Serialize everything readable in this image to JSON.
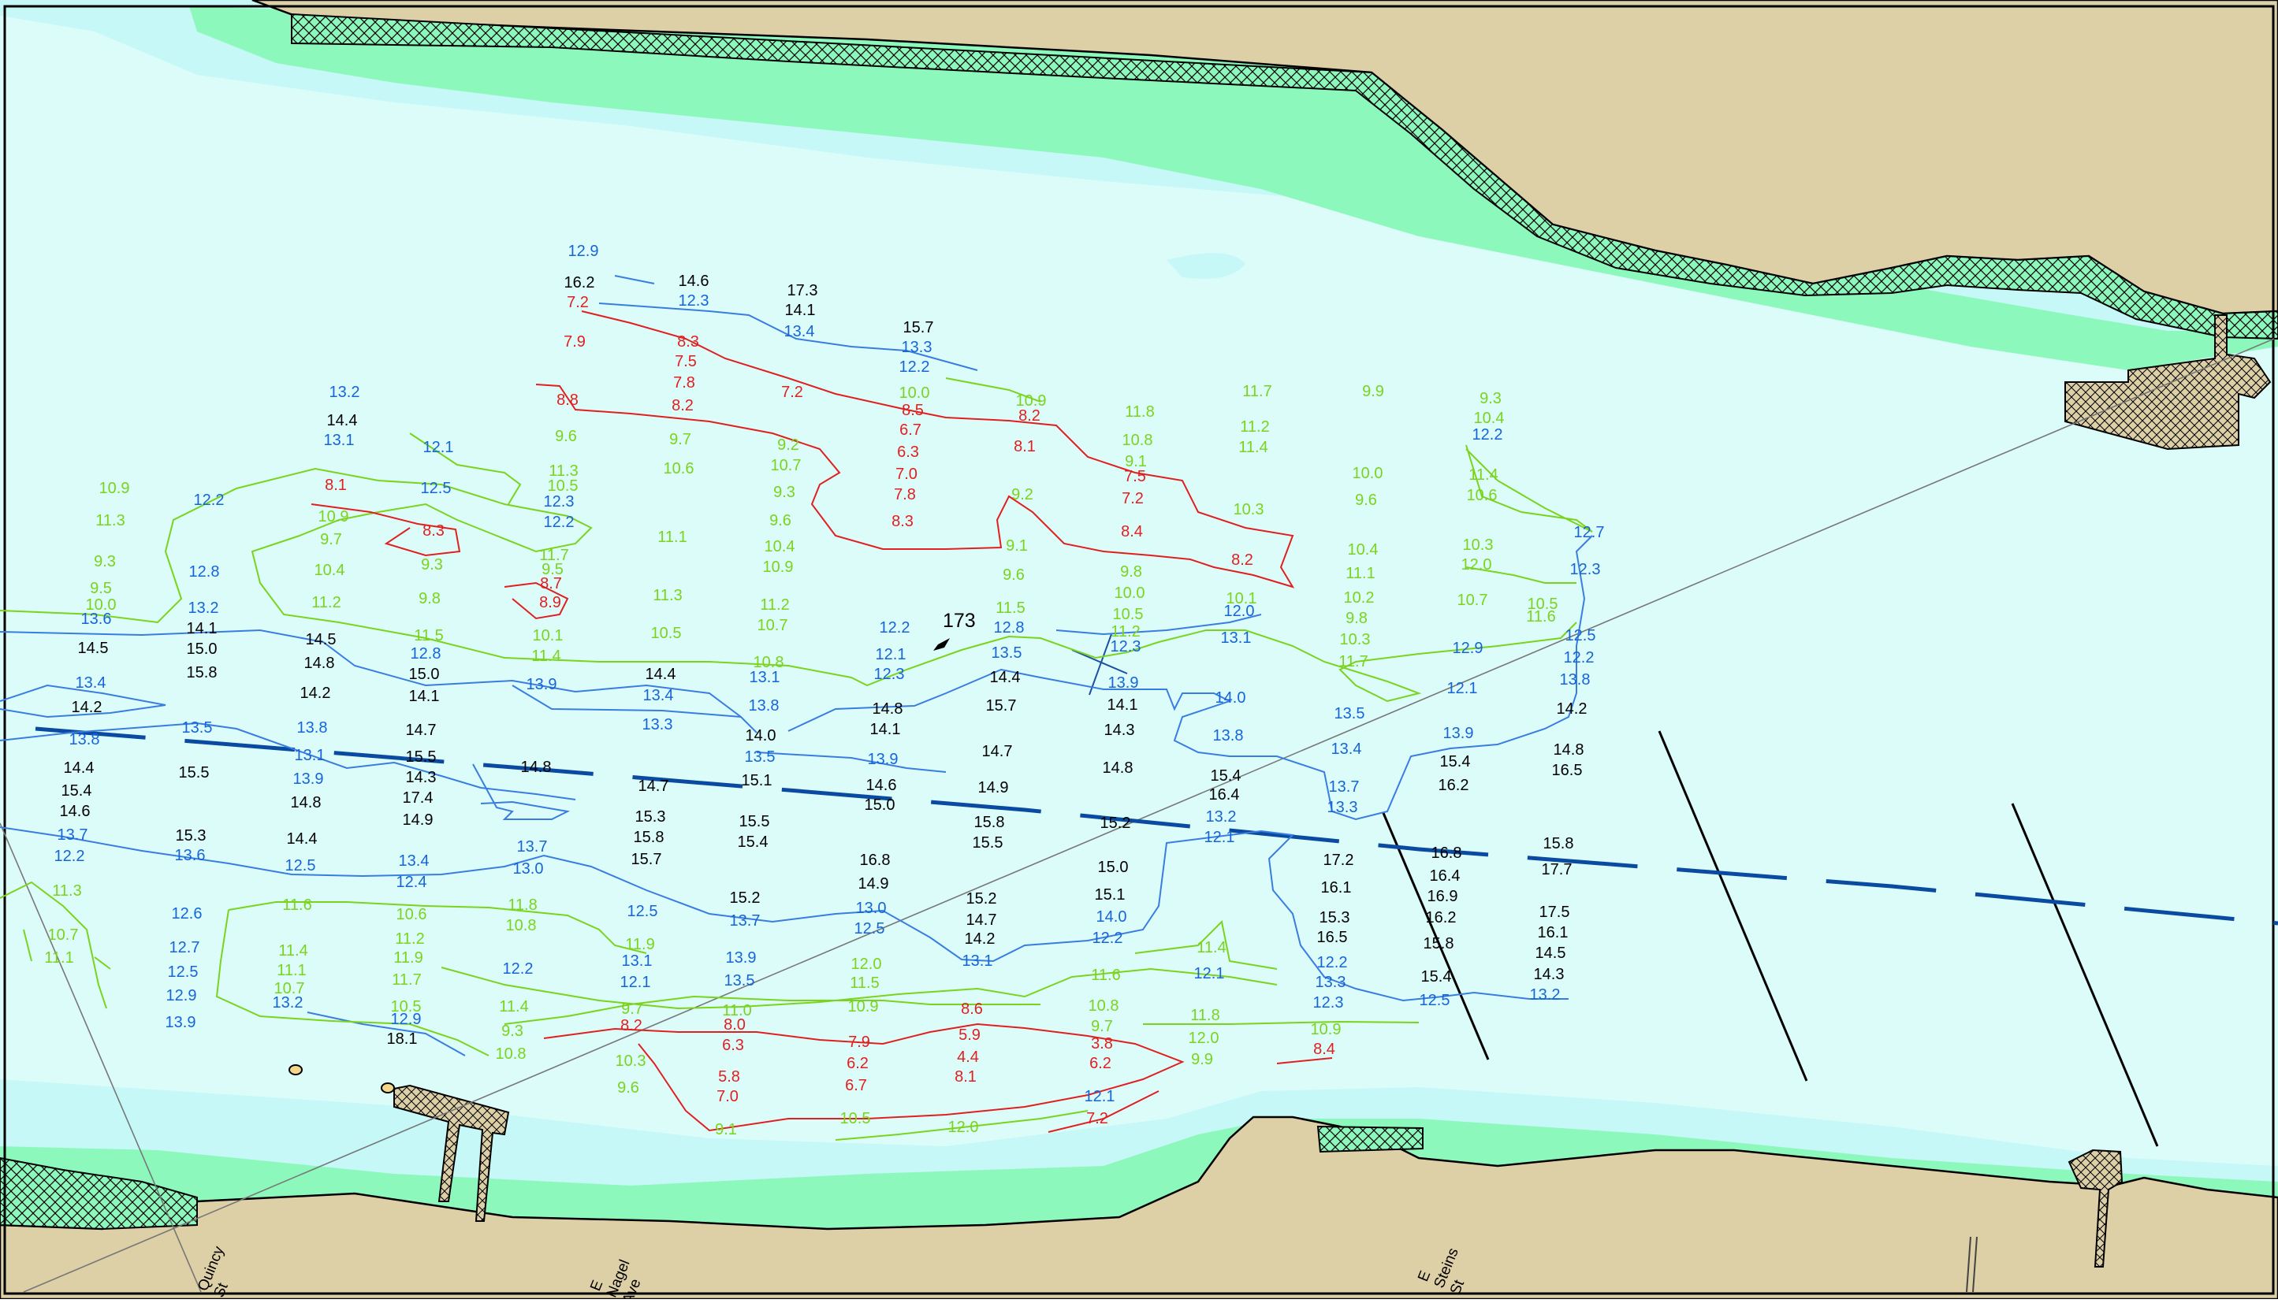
{
  "colors": {
    "water": "#dcfcfa",
    "shallow": "#c6f8f8",
    "marsh": "#8cf8bc",
    "land": "#ddcfa6",
    "depth_black": "#000000",
    "depth_blue": "#1565d8",
    "depth_green": "#7ad41c",
    "depth_red": "#e02020",
    "channel": "#0a4aa0"
  },
  "landmark": "173",
  "streets": [
    {
      "lines": [
        "Quincy",
        "St"
      ]
    },
    {
      "lines": [
        "E",
        "Nagel",
        "Ave"
      ]
    },
    {
      "lines": [
        "E",
        "Steins",
        "St"
      ]
    }
  ],
  "soundings": {
    "black": [
      [
        "16.2",
        735,
        365
      ],
      [
        "14.6",
        880,
        363
      ],
      [
        "17.3",
        1018,
        375
      ],
      [
        "14.1",
        1015,
        400
      ],
      [
        "15.7",
        1165,
        422
      ],
      [
        "14.4",
        434,
        540
      ],
      [
        "14.1",
        256,
        804
      ],
      [
        "15.0",
        256,
        830
      ],
      [
        "15.8",
        256,
        860
      ],
      [
        "14.5",
        118,
        829
      ],
      [
        "14.5",
        407,
        818
      ],
      [
        "14.8",
        405,
        848
      ],
      [
        "14.2",
        400,
        886
      ],
      [
        "15.0",
        538,
        862
      ],
      [
        "14.1",
        538,
        890
      ],
      [
        "14.2",
        110,
        904
      ],
      [
        "14.7",
        534,
        933
      ],
      [
        "15.5",
        534,
        967
      ],
      [
        "14.3",
        534,
        993
      ],
      [
        "17.4",
        530,
        1019
      ],
      [
        "14.9",
        530,
        1047
      ],
      [
        "15.5",
        246,
        987
      ],
      [
        "14.8",
        680,
        980
      ],
      [
        "14.4",
        100,
        981
      ],
      [
        "15.4",
        97,
        1010
      ],
      [
        "14.6",
        95,
        1036
      ],
      [
        "14.8",
        388,
        1025
      ],
      [
        "14.4",
        838,
        862
      ],
      [
        "14.7",
        829,
        1004
      ],
      [
        "14.0",
        965,
        940
      ],
      [
        "15.1",
        960,
        997
      ],
      [
        "15.3",
        825,
        1043
      ],
      [
        "15.8",
        823,
        1069
      ],
      [
        "15.7",
        820,
        1097
      ],
      [
        "15.5",
        957,
        1049
      ],
      [
        "15.4",
        955,
        1075
      ],
      [
        "15.3",
        242,
        1067
      ],
      [
        "14.4",
        383,
        1071
      ],
      [
        "14.8",
        1126,
        906
      ],
      [
        "14.1",
        1123,
        932
      ],
      [
        "14.6",
        1118,
        1003
      ],
      [
        "15.0",
        1116,
        1028
      ],
      [
        "16.8",
        1110,
        1098
      ],
      [
        "14.9",
        1108,
        1128
      ],
      [
        "14.4",
        1275,
        866
      ],
      [
        "15.7",
        1270,
        902
      ],
      [
        "14.7",
        1265,
        960
      ],
      [
        "14.9",
        1260,
        1006
      ],
      [
        "15.8",
        1255,
        1050
      ],
      [
        "15.5",
        1253,
        1076
      ],
      [
        "14.1",
        1424,
        901
      ],
      [
        "14.3",
        1420,
        933
      ],
      [
        "14.8",
        1418,
        981
      ],
      [
        "15.2",
        1415,
        1051
      ],
      [
        "15.0",
        1412,
        1107
      ],
      [
        "15.1",
        1408,
        1142
      ],
      [
        "15.2",
        945,
        1146
      ],
      [
        "15.2",
        1245,
        1147
      ],
      [
        "14.7",
        1245,
        1174
      ],
      [
        "14.2",
        1243,
        1198
      ],
      [
        "15.4",
        1555,
        991
      ],
      [
        "16.4",
        1553,
        1015
      ],
      [
        "14.2",
        1994,
        906
      ],
      [
        "15.4",
        1846,
        973
      ],
      [
        "16.2",
        1844,
        1003
      ],
      [
        "14.8",
        1990,
        958
      ],
      [
        "16.5",
        1988,
        984
      ],
      [
        "17.2",
        1698,
        1098
      ],
      [
        "16.1",
        1695,
        1133
      ],
      [
        "15.3",
        1693,
        1171
      ],
      [
        "16.5",
        1690,
        1196
      ],
      [
        "16.8",
        1835,
        1089
      ],
      [
        "16.4",
        1833,
        1118
      ],
      [
        "16.9",
        1830,
        1144
      ],
      [
        "16.2",
        1828,
        1171
      ],
      [
        "15.8",
        1825,
        1204
      ],
      [
        "15.4",
        1822,
        1246
      ],
      [
        "15.8",
        1977,
        1077
      ],
      [
        "17.7",
        1975,
        1110
      ],
      [
        "17.5",
        1972,
        1164
      ],
      [
        "16.1",
        1970,
        1190
      ],
      [
        "14.5",
        1967,
        1216
      ],
      [
        "14.3",
        1965,
        1243
      ],
      [
        "18.1",
        510,
        1325
      ]
    ],
    "blue": [
      [
        "12.9",
        740,
        325
      ],
      [
        "12.3",
        880,
        388
      ],
      [
        "13.4",
        1014,
        427
      ],
      [
        "13.3",
        1163,
        447
      ],
      [
        "12.2",
        1160,
        472
      ],
      [
        "13.2",
        437,
        504
      ],
      [
        "13.1",
        430,
        565
      ],
      [
        "12.1",
        556,
        574
      ],
      [
        "12.2",
        265,
        641
      ],
      [
        "12.5",
        553,
        626
      ],
      [
        "12.3",
        709,
        643
      ],
      [
        "12.2",
        709,
        669
      ],
      [
        "12.8",
        259,
        732
      ],
      [
        "13.2",
        258,
        778
      ],
      [
        "13.6",
        122,
        792
      ],
      [
        "12.8",
        540,
        836
      ],
      [
        "13.9",
        687,
        875
      ],
      [
        "13.1",
        970,
        866
      ],
      [
        "13.4",
        835,
        889
      ],
      [
        "13.3",
        834,
        926
      ],
      [
        "13.8",
        969,
        902
      ],
      [
        "13.5",
        964,
        967
      ],
      [
        "13.9",
        1120,
        970
      ],
      [
        "12.2",
        1135,
        803
      ],
      [
        "12.1",
        1130,
        837
      ],
      [
        "12.3",
        1128,
        862
      ],
      [
        "12.8",
        1280,
        803
      ],
      [
        "13.5",
        1277,
        835
      ],
      [
        "12.3",
        1428,
        827
      ],
      [
        "13.9",
        1425,
        873
      ],
      [
        "12.0",
        1572,
        782
      ],
      [
        "13.1",
        1568,
        816
      ],
      [
        "14.0",
        1561,
        892
      ],
      [
        "13.8",
        1558,
        940
      ],
      [
        "13.5",
        1712,
        912
      ],
      [
        "13.4",
        1708,
        957
      ],
      [
        "13.7",
        1705,
        1005
      ],
      [
        "13.3",
        1703,
        1031
      ],
      [
        "13.2",
        1549,
        1043
      ],
      [
        "12.1",
        1547,
        1069
      ],
      [
        "13.9",
        1850,
        937
      ],
      [
        "12.1",
        1855,
        880
      ],
      [
        "12.9",
        1862,
        829
      ],
      [
        "12.2",
        1887,
        558
      ],
      [
        "12.7",
        2016,
        682
      ],
      [
        "12.3",
        2011,
        729
      ],
      [
        "12.5",
        2005,
        813
      ],
      [
        "12.2",
        2003,
        841
      ],
      [
        "13.8",
        1998,
        869
      ],
      [
        "13.4",
        115,
        873
      ],
      [
        "13.8",
        107,
        945
      ],
      [
        "13.5",
        250,
        930
      ],
      [
        "13.8",
        396,
        930
      ],
      [
        "13.1",
        393,
        965
      ],
      [
        "13.9",
        391,
        995
      ],
      [
        "13.7",
        92,
        1066
      ],
      [
        "12.2",
        88,
        1093
      ],
      [
        "13.6",
        241,
        1092
      ],
      [
        "12.5",
        381,
        1105
      ],
      [
        "13.4",
        525,
        1099
      ],
      [
        "12.4",
        522,
        1126
      ],
      [
        "13.7",
        675,
        1081
      ],
      [
        "13.0",
        670,
        1109
      ],
      [
        "12.5",
        815,
        1163
      ],
      [
        "13.7",
        945,
        1175
      ],
      [
        "13.0",
        1105,
        1159
      ],
      [
        "12.5",
        1103,
        1185
      ],
      [
        "13.1",
        1240,
        1226
      ],
      [
        "14.0",
        1410,
        1170
      ],
      [
        "12.2",
        1405,
        1197
      ],
      [
        "12.1",
        1534,
        1242
      ],
      [
        "12.2",
        1690,
        1228
      ],
      [
        "13.3",
        1688,
        1253
      ],
      [
        "12.3",
        1685,
        1279
      ],
      [
        "12.5",
        1820,
        1276
      ],
      [
        "13.2",
        1960,
        1269
      ],
      [
        "12.6",
        237,
        1166
      ],
      [
        "12.7",
        234,
        1209
      ],
      [
        "12.5",
        232,
        1240
      ],
      [
        "12.9",
        230,
        1270
      ],
      [
        "13.9",
        229,
        1304
      ],
      [
        "13.2",
        365,
        1279
      ],
      [
        "12.9",
        515,
        1300
      ],
      [
        "12.2",
        657,
        1236
      ],
      [
        "13.1",
        808,
        1226
      ],
      [
        "12.1",
        806,
        1253
      ],
      [
        "13.9",
        940,
        1222
      ],
      [
        "13.5",
        938,
        1251
      ],
      [
        "12.1",
        1395,
        1398
      ]
    ],
    "green": [
      [
        "10.9",
        145,
        626
      ],
      [
        "11.3",
        140,
        667
      ],
      [
        "9.3",
        133,
        719
      ],
      [
        "9.5",
        128,
        753
      ],
      [
        "10.0",
        128,
        774
      ],
      [
        "11.3",
        715,
        604
      ],
      [
        "10.5",
        714,
        623
      ],
      [
        "11.7",
        703,
        711
      ],
      [
        "9.5",
        701,
        729
      ],
      [
        "9.6",
        718,
        560
      ],
      [
        "10.9",
        423,
        662
      ],
      [
        "9.7",
        420,
        691
      ],
      [
        "10.4",
        418,
        730
      ],
      [
        "11.2",
        414,
        771
      ],
      [
        "9.8",
        545,
        766
      ],
      [
        "9.3",
        548,
        723
      ],
      [
        "11.5",
        544,
        813
      ],
      [
        "10.1",
        695,
        813
      ],
      [
        "11.4",
        693,
        839
      ],
      [
        "11.1",
        853,
        688
      ],
      [
        "11.3",
        847,
        762
      ],
      [
        "10.5",
        845,
        810
      ],
      [
        "9.7",
        863,
        564
      ],
      [
        "10.6",
        861,
        601
      ],
      [
        "9.2",
        1000,
        571
      ],
      [
        "10.7",
        997,
        597
      ],
      [
        "9.3",
        995,
        631
      ],
      [
        "9.6",
        990,
        667
      ],
      [
        "10.4",
        989,
        700
      ],
      [
        "10.9",
        987,
        726
      ],
      [
        "11.2",
        983,
        774
      ],
      [
        "10.7",
        980,
        800
      ],
      [
        "10.8",
        975,
        847
      ],
      [
        "10.0",
        1160,
        505
      ],
      [
        "10.9",
        1308,
        515
      ],
      [
        "9.2",
        1297,
        634
      ],
      [
        "9.1",
        1290,
        699
      ],
      [
        "9.6",
        1286,
        736
      ],
      [
        "11.5",
        1282,
        778
      ],
      [
        "11.8",
        1446,
        529
      ],
      [
        "10.8",
        1443,
        565
      ],
      [
        "9.1",
        1441,
        592
      ],
      [
        "9.8",
        1435,
        732
      ],
      [
        "10.0",
        1433,
        759
      ],
      [
        "10.5",
        1431,
        786
      ],
      [
        "11.2",
        1428,
        808
      ],
      [
        "11.7",
        1595,
        503
      ],
      [
        "11.2",
        1592,
        548
      ],
      [
        "11.4",
        1590,
        574
      ],
      [
        "10.3",
        1584,
        653
      ],
      [
        "10.1",
        1575,
        766
      ],
      [
        "9.9",
        1742,
        503
      ],
      [
        "10.0",
        1735,
        607
      ],
      [
        "9.6",
        1733,
        641
      ],
      [
        "10.4",
        1729,
        704
      ],
      [
        "11.1",
        1726,
        734
      ],
      [
        "10.2",
        1724,
        765
      ],
      [
        "9.8",
        1721,
        791
      ],
      [
        "10.3",
        1719,
        818
      ],
      [
        "11.7",
        1717,
        846
      ],
      [
        "9.3",
        1891,
        512
      ],
      [
        "10.4",
        1889,
        537
      ],
      [
        "11.4",
        1882,
        609
      ],
      [
        "10.6",
        1880,
        635
      ],
      [
        "10.3",
        1875,
        698
      ],
      [
        "12.0",
        1873,
        723
      ],
      [
        "10.7",
        1868,
        768
      ],
      [
        "10.5",
        1957,
        773
      ],
      [
        "11.6",
        1955,
        789
      ],
      [
        "11.3",
        85,
        1137
      ],
      [
        "10.7",
        80,
        1193
      ],
      [
        "11.1",
        75,
        1222
      ],
      [
        "11.6",
        377,
        1155
      ],
      [
        "11.4",
        372,
        1213
      ],
      [
        "11.1",
        370,
        1238
      ],
      [
        "10.7",
        367,
        1261
      ],
      [
        "10.6",
        522,
        1167
      ],
      [
        "11.2",
        520,
        1198
      ],
      [
        "11.9",
        518,
        1222
      ],
      [
        "11.7",
        516,
        1250
      ],
      [
        "10.5",
        515,
        1284
      ],
      [
        "11.8",
        663,
        1155
      ],
      [
        "10.8",
        661,
        1181
      ],
      [
        "11.4",
        652,
        1284
      ],
      [
        "9.3",
        650,
        1315
      ],
      [
        "10.8",
        648,
        1344
      ],
      [
        "11.9",
        812,
        1205
      ],
      [
        "9.7",
        802,
        1287
      ],
      [
        "10.3",
        800,
        1353
      ],
      [
        "9.6",
        797,
        1387
      ],
      [
        "11.0",
        935,
        1289
      ],
      [
        "12.0",
        1099,
        1230
      ],
      [
        "11.5",
        1097,
        1254
      ],
      [
        "10.9",
        1095,
        1284
      ],
      [
        "11.4",
        1537,
        1209
      ],
      [
        "11.6",
        1403,
        1244
      ],
      [
        "10.8",
        1400,
        1283
      ],
      [
        "9.7",
        1398,
        1309
      ],
      [
        "11.8",
        1529,
        1295
      ],
      [
        "12.0",
        1527,
        1324
      ],
      [
        "9.9",
        1525,
        1351
      ],
      [
        "10.9",
        1682,
        1313
      ],
      [
        "9.1",
        921,
        1440
      ],
      [
        "10.5",
        1085,
        1426
      ],
      [
        "12.0",
        1222,
        1437
      ]
    ],
    "red": [
      [
        "7.2",
        733,
        390
      ],
      [
        "7.9",
        729,
        440
      ],
      [
        "8.3",
        873,
        440
      ],
      [
        "7.5",
        870,
        465
      ],
      [
        "7.8",
        868,
        492
      ],
      [
        "8.2",
        866,
        521
      ],
      [
        "7.2",
        1005,
        504
      ],
      [
        "8.8",
        720,
        514
      ],
      [
        "8.5",
        1158,
        527
      ],
      [
        "6.7",
        1155,
        552
      ],
      [
        "6.3",
        1152,
        580
      ],
      [
        "7.0",
        1150,
        608
      ],
      [
        "7.8",
        1148,
        634
      ],
      [
        "8.3",
        1145,
        668
      ],
      [
        "8.2",
        1306,
        534
      ],
      [
        "8.1",
        1300,
        573
      ],
      [
        "7.5",
        1440,
        611
      ],
      [
        "7.2",
        1437,
        639
      ],
      [
        "8.4",
        1436,
        681
      ],
      [
        "8.2",
        1576,
        717
      ],
      [
        "8.1",
        426,
        622
      ],
      [
        "8.3",
        550,
        680
      ],
      [
        "8.7",
        699,
        747
      ],
      [
        "8.9",
        698,
        771
      ],
      [
        "8.2",
        801,
        1308
      ],
      [
        "8.0",
        932,
        1307
      ],
      [
        "6.3",
        930,
        1333
      ],
      [
        "7.9",
        1090,
        1329
      ],
      [
        "6.2",
        1088,
        1356
      ],
      [
        "6.7",
        1086,
        1384
      ],
      [
        "5.8",
        925,
        1373
      ],
      [
        "7.0",
        923,
        1398
      ],
      [
        "8.6",
        1233,
        1287
      ],
      [
        "5.9",
        1230,
        1320
      ],
      [
        "4.4",
        1228,
        1348
      ],
      [
        "8.1",
        1225,
        1373
      ],
      [
        "3.8",
        1398,
        1331
      ],
      [
        "6.2",
        1396,
        1356
      ],
      [
        "8.4",
        1680,
        1338
      ],
      [
        "7.2",
        1392,
        1426
      ]
    ]
  }
}
